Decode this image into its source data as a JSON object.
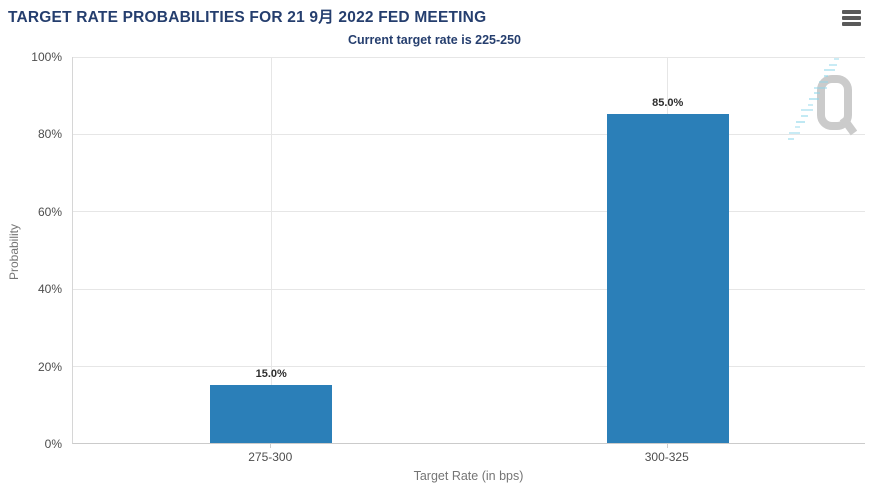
{
  "header": {
    "menu_icon": "hamburger-icon"
  },
  "chart_data": {
    "type": "bar",
    "title": "TARGET RATE PROBABILITIES FOR 21 9月 2022 FED MEETING",
    "subtitle": "Current target rate is 225-250",
    "categories": [
      "275-300",
      "300-325"
    ],
    "values": [
      15.0,
      85.0
    ],
    "value_labels": [
      "15.0%",
      "85.0%"
    ],
    "xlabel": "Target Rate (in bps)",
    "ylabel": "Probability",
    "ylim": [
      0,
      100
    ],
    "ytick_interval": 20,
    "ytick_labels": [
      "0%",
      "20%",
      "40%",
      "60%",
      "80%",
      "100%"
    ],
    "grid": true,
    "legend": "none",
    "bar_color": "#2b7fb8"
  },
  "watermark": {
    "letter": "Q"
  },
  "colors": {
    "bar": "#2b7fb8",
    "navy": "#253e6e",
    "grid": "#e6e6e6",
    "tick-label": "#4d4d4d",
    "axis-title": "#757575",
    "value-label": "#2e2e2e",
    "menu-icon": "#5a5a5a",
    "watermark-gray": "#cbcbcb",
    "watermark-blue": "#8ed7ea"
  }
}
